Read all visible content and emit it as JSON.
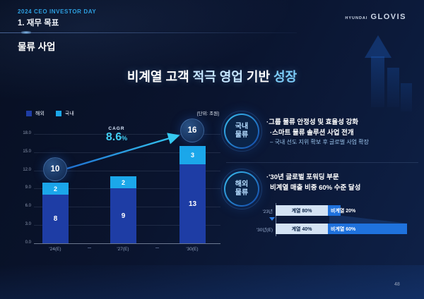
{
  "header": {
    "event": "2024 CEO INVESTOR DAY",
    "section": "1. 재무 목표",
    "category": "물류 사업",
    "logo_brand": "HYUNDAI",
    "logo_name": "GLOVIS"
  },
  "title": {
    "seg1": "비계열 고객 ",
    "seg2": "적극 영업",
    "seg3": " 기반 ",
    "seg4": "성장"
  },
  "chart_data": {
    "type": "bar",
    "stacked": true,
    "unit_label": "[단위: 조원]",
    "categories": [
      "'24(E)",
      "'27(E)",
      "'30(E)"
    ],
    "series": [
      {
        "name": "해외",
        "color": "#1e3da5",
        "values": [
          8,
          9,
          13
        ]
      },
      {
        "name": "국내",
        "color": "#1ba7ea",
        "values": [
          2,
          2,
          3
        ]
      }
    ],
    "totals_badges": [
      {
        "category": "'24(E)",
        "value": "10"
      },
      {
        "category": "'30(E)",
        "value": "16"
      }
    ],
    "cagr": {
      "label": "CAGR",
      "value": "8.6",
      "suffix": "%"
    },
    "ylim": [
      0,
      18
    ],
    "yticks": [
      "18.0",
      "15.0",
      "12.0",
      "9.0",
      "6.0",
      "3.0",
      "0.0"
    ],
    "grid": true,
    "legend_position": "top-left"
  },
  "right_panel": {
    "domestic": {
      "badge_line1": "국내",
      "badge_line2": "물류",
      "bullet1": "·그룹 물류 안정성 및 효율성 강화",
      "bullet2": "·스마트 물류 솔루션 사업 전개",
      "sub_bullet": "– 국내 선도 지위 확보 후 글로벌 사업 확장"
    },
    "overseas": {
      "badge_line1": "해외",
      "badge_line2": "물류",
      "bullet_line1": "·'30년 글로벌 포워딩 부문",
      "bullet_line2": "비계열 매출 비중 60% 수준 달성",
      "mini_chart": {
        "type": "bar",
        "rows": [
          {
            "label": "'23년",
            "total_width": 92,
            "segments": [
              {
                "name": "계열 80%",
                "pct": 80
              },
              {
                "name": "비계열 20%",
                "pct": 20
              }
            ]
          },
          {
            "label": "'30년(E)",
            "total_width": 186,
            "segments": [
              {
                "name": "계열 40%",
                "pct": 40
              },
              {
                "name": "비계열 60%",
                "pct": 60
              }
            ]
          }
        ]
      }
    }
  },
  "colors": {
    "background": "#0a142e",
    "accent_cyan": "#41cdf2",
    "series_overseas": "#1e3da5",
    "series_domestic": "#1ba7ea",
    "mini_affiliate": "#d4e3f4",
    "mini_non_affiliate": "#1f72dd"
  },
  "page_number": "48"
}
